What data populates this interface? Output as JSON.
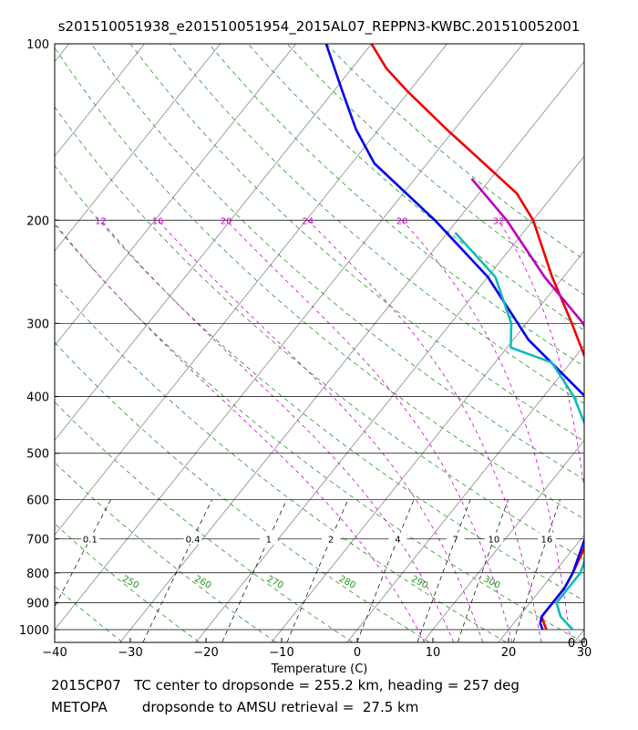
{
  "header": {
    "title": "s201510051938_e201510051954_2015AL07_REPPN3-KWBC.201510052001"
  },
  "footer": {
    "line1": "2015CP07   TC center to dropsonde = 255.2 km, heading = 257 deg",
    "line2": "METOPA        dropsonde to AMSU retrieval =  27.5 km"
  },
  "colors": {
    "red": "#ee0000",
    "blue": "#0000ee",
    "cyan": "#11bbbb",
    "magenta": "#bb00bb",
    "dry_adiabat": "#229922",
    "moist_adiabat": "#cc00cc",
    "isotherm": "#888888",
    "mixing_ratio": "#000000",
    "isobar": "#000000"
  },
  "chart_data": {
    "type": "skew-t",
    "xlabel": "Temperature (C)",
    "ylabel": "",
    "xlim": [
      -40,
      30
    ],
    "ylim": [
      1050,
      100
    ],
    "x_ticks": [
      -40,
      -30,
      -20,
      -10,
      0,
      10,
      20,
      30
    ],
    "pressure_ticks": [
      100,
      200,
      300,
      400,
      500,
      600,
      700,
      800,
      900,
      1000
    ],
    "isotherms": [
      -110,
      -100,
      -90,
      -80,
      -70,
      -60,
      -50,
      -40,
      -30,
      -20,
      -10,
      0,
      10,
      20,
      30,
      40
    ],
    "dry_adiabats": [
      230,
      240,
      250,
      260,
      270,
      280,
      290,
      300,
      310,
      320,
      330,
      340,
      350,
      360,
      370,
      380,
      390,
      400
    ],
    "dry_adiabat_labels": [
      250,
      260,
      270,
      280,
      290,
      300
    ],
    "moist_adiabats": [
      8,
      12,
      16,
      20,
      24,
      28,
      32
    ],
    "mixing_ratio_labels": [
      "0.1",
      "0.4",
      "1",
      "2",
      "4",
      "7",
      "10",
      "16"
    ],
    "mixing_ratio_values": [
      0.1,
      0.4,
      1,
      2,
      4,
      7,
      10,
      16
    ],
    "corner_labels": [
      "0",
      "0"
    ],
    "series": [
      {
        "name": "red",
        "color": "#ee0000",
        "points": [
          [
            1000,
            25
          ],
          [
            975,
            24
          ],
          [
            950,
            23
          ],
          [
            900,
            23
          ],
          [
            850,
            23
          ],
          [
            800,
            22.5
          ],
          [
            700,
            21
          ],
          [
            600,
            19
          ],
          [
            500,
            15.5
          ],
          [
            400,
            7.5
          ],
          [
            300,
            -4
          ],
          [
            250,
            -11.5
          ],
          [
            200,
            -20
          ],
          [
            180,
            -25
          ],
          [
            160,
            -32.5
          ],
          [
            140,
            -41
          ],
          [
            120,
            -50.5
          ],
          [
            110,
            -55.5
          ],
          [
            100,
            -60
          ]
        ]
      },
      {
        "name": "blue",
        "color": "#0000ee",
        "points": [
          [
            1000,
            24.5
          ],
          [
            975,
            23.5
          ],
          [
            950,
            23
          ],
          [
            900,
            23
          ],
          [
            850,
            23
          ],
          [
            800,
            22.5
          ],
          [
            700,
            20.5
          ],
          [
            600,
            17
          ],
          [
            500,
            13
          ],
          [
            400,
            5.5
          ],
          [
            320,
            -8
          ],
          [
            250,
            -20
          ],
          [
            200,
            -33
          ],
          [
            160,
            -47
          ],
          [
            140,
            -53
          ],
          [
            120,
            -59
          ],
          [
            100,
            -66
          ]
        ]
      },
      {
        "name": "cyan",
        "color": "#11bbbb",
        "points": [
          [
            1000,
            28.5
          ],
          [
            975,
            27
          ],
          [
            950,
            25.5
          ],
          [
            900,
            23.5
          ],
          [
            850,
            23.5
          ],
          [
            800,
            23.5
          ],
          [
            700,
            21.5
          ],
          [
            600,
            18.5
          ],
          [
            500,
            13
          ],
          [
            400,
            4
          ],
          [
            350,
            -2.5
          ],
          [
            330,
            -9.5
          ],
          [
            300,
            -12
          ],
          [
            250,
            -19
          ],
          [
            210,
            -29
          ]
        ]
      },
      {
        "name": "magenta",
        "color": "#bb00bb",
        "points": [
          [
            750,
            24
          ],
          [
            700,
            22
          ],
          [
            600,
            20.5
          ],
          [
            500,
            17
          ],
          [
            420,
            11.5
          ],
          [
            330,
            1.5
          ],
          [
            300,
            -2.5
          ],
          [
            250,
            -12.5
          ],
          [
            200,
            -23.5
          ],
          [
            170,
            -32.5
          ]
        ]
      }
    ]
  }
}
